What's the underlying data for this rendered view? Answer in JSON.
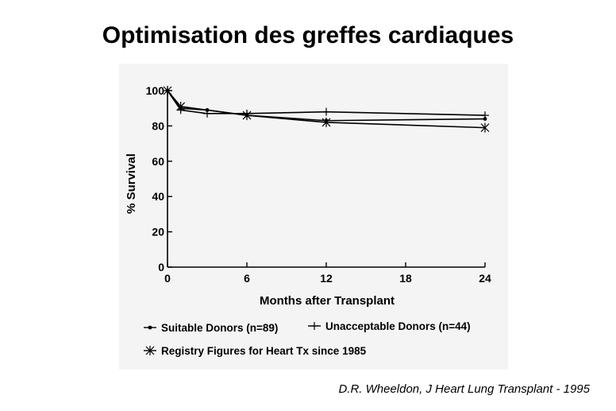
{
  "slide": {
    "title": "Optimisation des greffes cardiaques",
    "citation": "D.R. Wheeldon, J Heart Lung Transplant - 1995"
  },
  "chart_data": {
    "type": "line",
    "xlabel": "Months after Transplant",
    "ylabel": "% Survival",
    "xlim": [
      0,
      24
    ],
    "ylim": [
      0,
      100
    ],
    "xticks": [
      0,
      6,
      12,
      18,
      24
    ],
    "yticks": [
      0,
      20,
      40,
      60,
      80,
      100
    ],
    "grid": false,
    "legend_position": "bottom",
    "series": [
      {
        "name": "Suitable Donors (n=89)",
        "marker": "dot",
        "x": [
          0,
          1,
          3,
          6,
          12,
          24
        ],
        "y": [
          100,
          90,
          89,
          86,
          83,
          84
        ]
      },
      {
        "name": "Unacceptable Donors (n=44)",
        "marker": "plus",
        "x": [
          0,
          1,
          3,
          6,
          12,
          24
        ],
        "y": [
          100,
          89,
          87,
          87,
          88,
          86
        ]
      },
      {
        "name": "Registry Figures for Heart Tx since 1985",
        "marker": "star",
        "x": [
          0,
          1,
          6,
          12,
          24
        ],
        "y": [
          100,
          91,
          86,
          82,
          79
        ]
      }
    ]
  }
}
